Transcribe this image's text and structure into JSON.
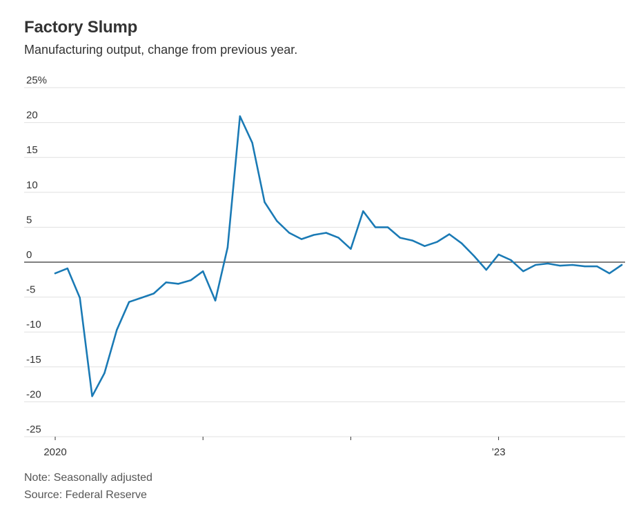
{
  "header": {
    "title": "Factory Slump",
    "subtitle": "Manufacturing output, change from previous year."
  },
  "footer": {
    "note": "Note: Seasonally adjusted",
    "source": "Source: Federal Reserve"
  },
  "colors": {
    "line": "#1a7ab5",
    "zero_line": "#333333",
    "grid": "#e0e0e0",
    "text": "#333333"
  },
  "chart_data": {
    "type": "line",
    "title": "Factory Slump",
    "subtitle": "Manufacturing output, change from previous year.",
    "xlabel": "",
    "ylabel": "",
    "ylim": [
      -25,
      25
    ],
    "yticks": [
      25,
      20,
      15,
      10,
      5,
      0,
      -5,
      -10,
      -15,
      -20,
      -25
    ],
    "ytick_labels": [
      "25%",
      "20",
      "15",
      "10",
      "5",
      "0",
      "-5",
      "-10",
      "-15",
      "-20",
      "-25"
    ],
    "xticks": [
      {
        "date": "2020-01",
        "label": "2020"
      },
      {
        "date": "2021-01",
        "label": ""
      },
      {
        "date": "2022-01",
        "label": ""
      },
      {
        "date": "2023-01",
        "label": "’23"
      }
    ],
    "grid": true,
    "series": [
      {
        "x": [
          "2020-01",
          "2020-02",
          "2020-03",
          "2020-04",
          "2020-05",
          "2020-06",
          "2020-07",
          "2020-08",
          "2020-09",
          "2020-10",
          "2020-11",
          "2020-12",
          "2021-01",
          "2021-02",
          "2021-03",
          "2021-04",
          "2021-05",
          "2021-06",
          "2021-07",
          "2021-08",
          "2021-09",
          "2021-10",
          "2021-11",
          "2021-12",
          "2022-01",
          "2022-02",
          "2022-03",
          "2022-04",
          "2022-05",
          "2022-06",
          "2022-07",
          "2022-08",
          "2022-09",
          "2022-10",
          "2022-11",
          "2022-12",
          "2023-01",
          "2023-02",
          "2023-03",
          "2023-04",
          "2023-05",
          "2023-06",
          "2023-07",
          "2023-08",
          "2023-09",
          "2023-10",
          "2023-11"
        ],
        "values": [
          -1.6,
          -0.9,
          -5.1,
          -19.2,
          -15.9,
          -9.7,
          -5.7,
          -5.1,
          -4.5,
          -2.9,
          -3.1,
          -2.6,
          -1.3,
          -5.5,
          2.1,
          20.9,
          17.1,
          8.6,
          5.9,
          4.2,
          3.3,
          3.9,
          4.2,
          3.5,
          1.9,
          7.3,
          5.0,
          5.0,
          3.5,
          3.1,
          2.3,
          2.9,
          4.0,
          2.7,
          0.9,
          -1.1,
          1.1,
          0.3,
          -1.3,
          -0.4,
          -0.2,
          -0.5,
          -0.4,
          -0.6,
          -0.6,
          -1.6,
          -0.4
        ]
      }
    ]
  }
}
